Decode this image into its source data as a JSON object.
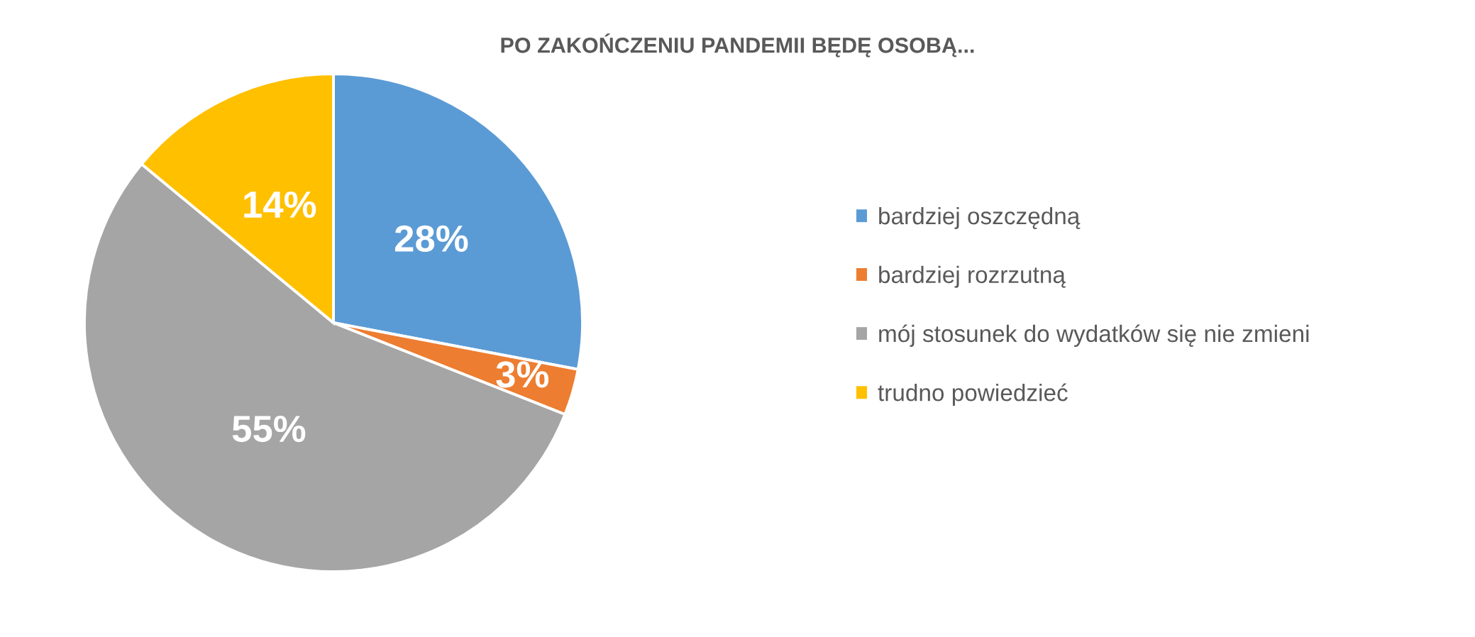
{
  "chart_data": {
    "type": "pie",
    "title": "PO ZAKOŃCZENIU PANDEMII BĘDĘ OSOBĄ...",
    "categories": [
      "bardziej oszczędną",
      "bardziej rozrzutną",
      "mój stosunek do wydatków się nie zmieni",
      "trudno powiedzieć"
    ],
    "values": [
      28,
      3,
      55,
      14
    ],
    "colors": [
      "#5b9bd5",
      "#ed7d31",
      "#a5a5a5",
      "#ffc000"
    ],
    "value_labels": [
      "28%",
      "3%",
      "55%",
      "14%"
    ],
    "legend": "right"
  }
}
